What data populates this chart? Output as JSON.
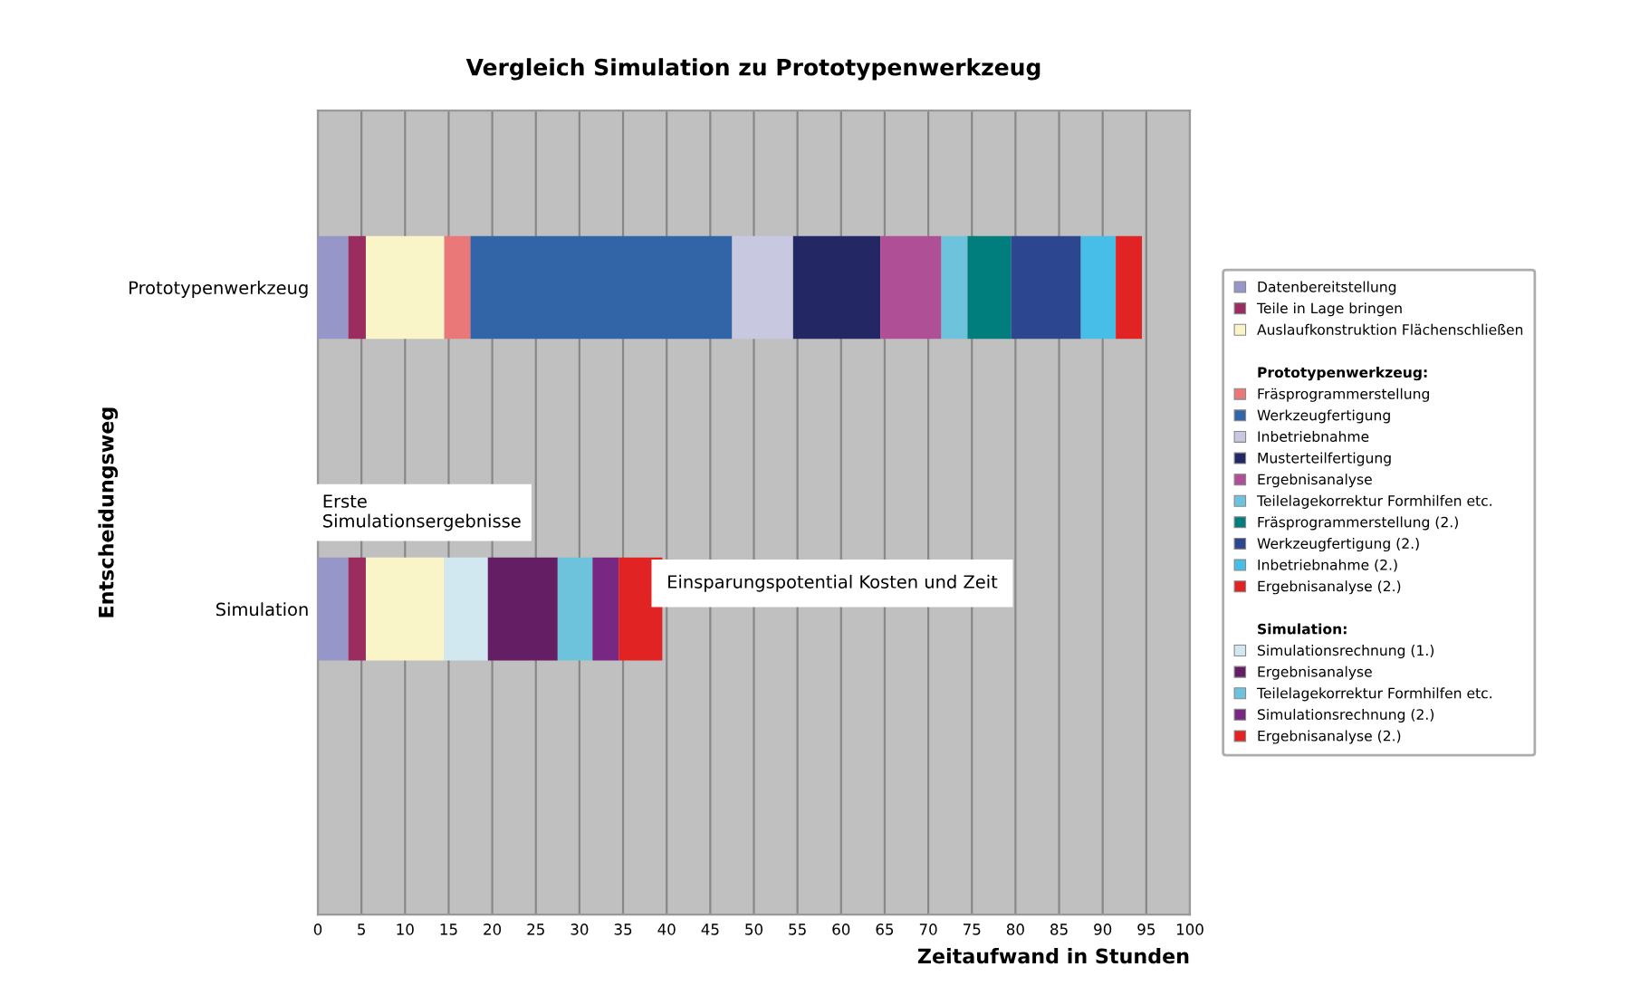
{
  "chart_data": {
    "type": "bar",
    "orientation": "horizontal",
    "stacked": true,
    "title": "Vergleich Simulation zu Prototypenwerkzeug",
    "xlabel": "Zeitaufwand in Stunden",
    "ylabel": "Entscheidungsweg",
    "categories": [
      "Prototypenwerkzeug",
      "Simulation"
    ],
    "series": [
      {
        "name": "Datenbereitstellung",
        "color": "#9696c8",
        "values": [
          3.5,
          3.5
        ]
      },
      {
        "name": "Teile in Lage bringen",
        "color": "#9b2c5f",
        "values": [
          2,
          2
        ]
      },
      {
        "name": "Auslaufkonstruktion Flächenschließen",
        "color": "#faf5c8",
        "values": [
          9,
          9
        ]
      },
      {
        "name": "Fräsprogrammerstellung",
        "color": "#eb7878",
        "values": [
          3,
          null
        ]
      },
      {
        "name": "Werkzeugfertigung",
        "color": "#3264a8",
        "values": [
          30,
          null
        ]
      },
      {
        "name": "Inbetriebnahme",
        "color": "#c8c8e0",
        "values": [
          7,
          null
        ]
      },
      {
        "name": "Musterteilfertigung",
        "color": "#232864",
        "values": [
          10,
          null
        ]
      },
      {
        "name": "Ergebnisanalyse",
        "color": "#af5096",
        "values": [
          7,
          null
        ]
      },
      {
        "name": "Teilelagekorrektur Formhilfen etc.",
        "color": "#6ec3dc",
        "values": [
          3,
          null
        ]
      },
      {
        "name": "Fräsprogrammerstellung (2.)",
        "color": "#007d7d",
        "values": [
          5,
          null
        ]
      },
      {
        "name": "Werkzeugfertigung (2.)",
        "color": "#2d4690",
        "values": [
          8,
          null
        ]
      },
      {
        "name": "Inbetriebnahme (2.)",
        "color": "#46bee8",
        "values": [
          4,
          null
        ]
      },
      {
        "name": "Ergebnisanalyse (2.)",
        "color": "#e12323",
        "values": [
          3,
          null
        ]
      },
      {
        "name": "Simulationsrechnung (1.)",
        "color": "#d2e8f0",
        "values": [
          null,
          5
        ]
      },
      {
        "name": "Ergebnisanalyse",
        "color": "#641e64",
        "values": [
          null,
          8
        ]
      },
      {
        "name": "Teilelagekorrektur Formhilfen etc.",
        "color": "#6ec3dc",
        "values": [
          null,
          4
        ]
      },
      {
        "name": "Simulationsrechnung (2.)",
        "color": "#782882",
        "values": [
          null,
          3
        ]
      },
      {
        "name": "Ergebnisanalyse (2.)",
        "color": "#e12323",
        "values": [
          null,
          5
        ]
      }
    ],
    "xlim": [
      0,
      100
    ],
    "xticks": [
      0,
      5,
      10,
      15,
      20,
      25,
      30,
      35,
      40,
      45,
      50,
      55,
      60,
      65,
      70,
      75,
      80,
      85,
      90,
      95,
      100
    ],
    "grid": "x",
    "legend": "right",
    "annotations": [
      "Erste\nSimulationsergebnisse",
      {
        "text": "Einsparungspotential Kosten und Zeit",
        "x": 40,
        "y": "Simulation"
      },
      "Prototypenwerkzeug:",
      "Simulation:"
    ]
  }
}
